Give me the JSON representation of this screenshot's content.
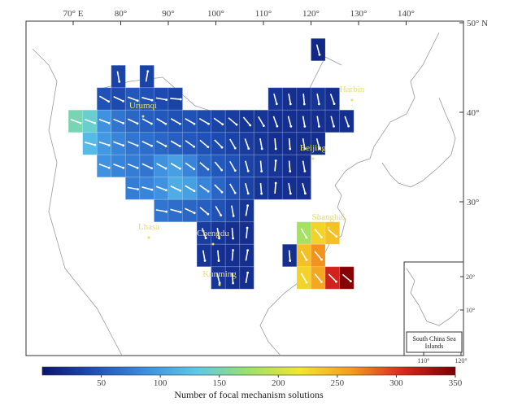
{
  "map": {
    "xticks": [
      {
        "value": 70,
        "label": "70° E"
      },
      {
        "value": 80,
        "label": "80°"
      },
      {
        "value": 90,
        "label": "90°"
      },
      {
        "value": 100,
        "label": "100°"
      },
      {
        "value": 110,
        "label": "110°"
      },
      {
        "value": 120,
        "label": "120°"
      },
      {
        "value": 130,
        "label": "130°"
      },
      {
        "value": 140,
        "label": "140°"
      }
    ],
    "yticks": [
      {
        "value": 50,
        "label": "50° N"
      },
      {
        "value": 40,
        "label": "40°"
      },
      {
        "value": 30,
        "label": "30°"
      }
    ],
    "cities": [
      "Urumqi",
      "Harbin",
      "Beijing",
      "Lhasa",
      "Chengdu",
      "Shanghai",
      "Kunming"
    ],
    "cells": [
      {
        "lat": 47,
        "lon": 121.5,
        "counts": [
          15
        ],
        "azimuths": [
          165
        ]
      },
      {
        "lat": 44,
        "lon": 79.5,
        "counts": [
          35
        ],
        "azimuths": [
          170
        ]
      },
      {
        "lat": 44,
        "lon": 85.5,
        "counts": [
          35
        ],
        "azimuths": [
          10
        ]
      },
      {
        "lat": 41.5,
        "lon": 76.5,
        "counts": [
          45,
          40,
          50,
          45,
          40,
          35
        ],
        "azimuths": [
          120,
          115,
          110,
          105,
          100,
          95
        ]
      },
      {
        "lat": 41.5,
        "lon": 112.5,
        "counts": [
          25,
          20,
          20,
          25,
          20
        ],
        "azimuths": [
          165,
          170,
          175,
          170,
          160
        ]
      },
      {
        "lat": 39,
        "lon": 70.5,
        "counts": [
          150,
          140,
          90,
          70,
          60,
          55,
          50,
          45,
          45,
          40,
          35,
          30,
          25,
          25,
          20,
          20,
          20,
          20,
          20,
          20
        ],
        "azimuths": [
          110,
          110,
          110,
          112,
          115,
          118,
          120,
          120,
          120,
          120,
          125,
          130,
          140,
          150,
          160,
          165,
          170,
          170,
          165,
          160
        ]
      },
      {
        "lat": 36.5,
        "lon": 73.5,
        "counts": [
          120,
          95,
          80,
          70,
          65,
          60,
          55,
          50,
          45,
          40,
          35,
          30,
          25,
          20,
          20,
          20,
          20
        ],
        "azimuths": [
          105,
          108,
          110,
          112,
          115,
          118,
          120,
          125,
          130,
          135,
          150,
          160,
          170,
          175,
          175,
          170,
          165
        ]
      },
      {
        "lat": 34,
        "lon": 76.5,
        "counts": [
          90,
          80,
          75,
          70,
          90,
          100,
          80,
          60,
          50,
          45,
          35,
          30,
          25,
          20,
          20
        ],
        "azimuths": [
          110,
          110,
          112,
          115,
          118,
          120,
          125,
          130,
          140,
          150,
          165,
          175,
          5,
          175,
          170
        ]
      },
      {
        "lat": 31.5,
        "lon": 82.5,
        "counts": [
          75,
          80,
          90,
          110,
          100,
          80,
          60,
          45,
          35,
          25,
          20,
          20,
          20
        ],
        "azimuths": [
          100,
          105,
          110,
          115,
          120,
          125,
          135,
          150,
          165,
          175,
          5,
          170,
          165
        ]
      },
      {
        "lat": 29,
        "lon": 88.5,
        "counts": [
          70,
          65,
          60,
          55,
          45,
          35,
          25
        ],
        "azimuths": [
          100,
          105,
          115,
          130,
          150,
          170,
          10
        ]
      },
      {
        "lat": 26.5,
        "lon": 97.5,
        "counts": [
          30,
          25,
          20,
          20
        ],
        "azimuths": [
          160,
          170,
          175,
          5
        ]
      },
      {
        "lat": 26.5,
        "lon": 118.5,
        "counts": [
          180,
          230,
          240
        ],
        "azimuths": [
          150,
          140,
          130
        ]
      },
      {
        "lat": 24,
        "lon": 97.5,
        "counts": [
          25,
          20,
          20,
          20
        ],
        "azimuths": [
          170,
          175,
          5,
          10
        ]
      },
      {
        "lat": 24,
        "lon": 115.5,
        "counts": [
          20,
          240,
          265
        ],
        "azimuths": [
          175,
          150,
          140
        ]
      },
      {
        "lat": 21.5,
        "lon": 100.5,
        "counts": [
          25,
          20,
          20
        ],
        "azimuths": [
          165,
          175,
          10
        ]
      },
      {
        "lat": 21.5,
        "lon": 118.5,
        "counts": [
          230,
          255,
          310,
          345
        ],
        "azimuths": [
          150,
          140,
          135,
          130
        ]
      }
    ],
    "colorbar": {
      "label": "Number of focal mechanism solutions",
      "clim": [
        0,
        350
      ],
      "ticks": [
        50,
        100,
        150,
        200,
        250,
        300,
        350
      ],
      "colormap": [
        "#0b1470",
        "#1e4fb5",
        "#3d8fe0",
        "#5ec9e8",
        "#9be26a",
        "#f2e62e",
        "#f59a1e",
        "#d7261e",
        "#7a0000"
      ]
    },
    "inset": {
      "title": "South China Sea Islands",
      "xticks": [
        {
          "value": 110,
          "label": "110°"
        },
        {
          "value": 120,
          "label": "120°"
        }
      ],
      "yticks": [
        {
          "value": 20,
          "label": "20°"
        },
        {
          "value": 10,
          "label": "10°"
        }
      ]
    }
  }
}
